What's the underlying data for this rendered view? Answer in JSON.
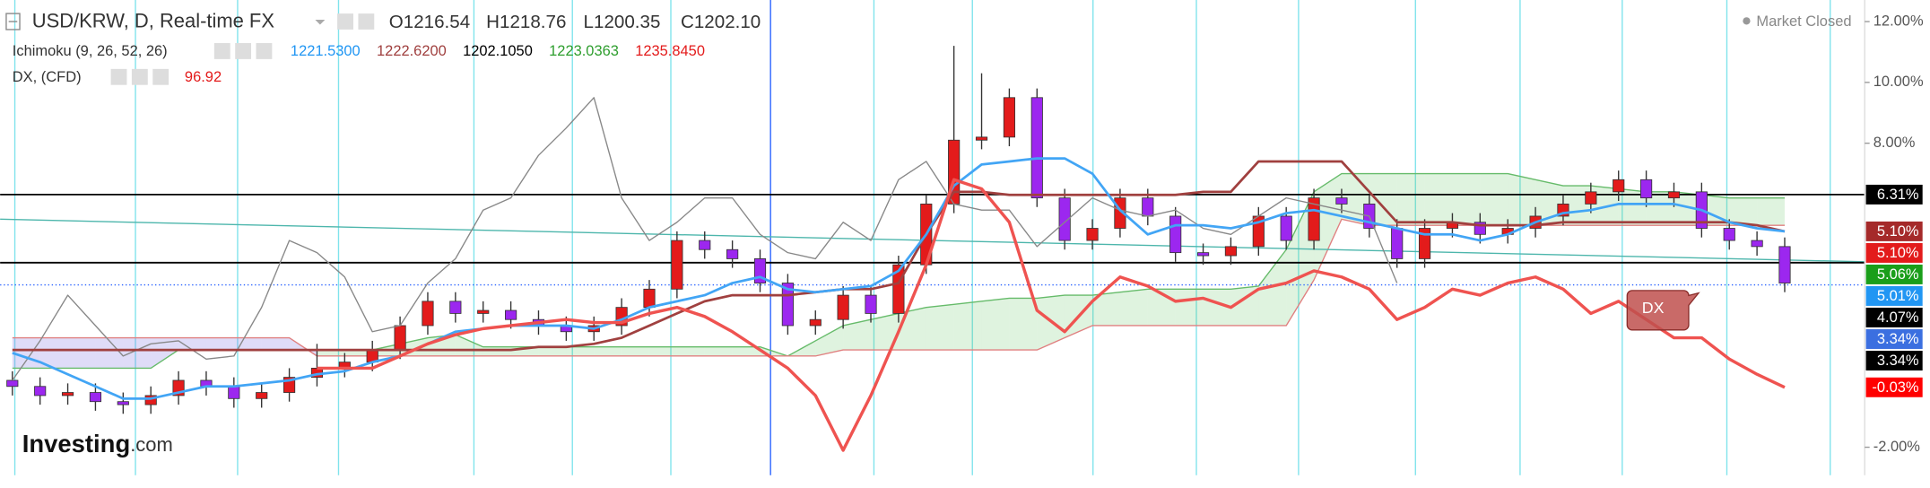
{
  "chart_data": {
    "type": "candlestick",
    "title": "USD/KRW, D, Real-time FX",
    "ohlc": [
      {
        "label": "O",
        "value": "1216.54"
      },
      {
        "label": "H",
        "value": "1218.76"
      },
      {
        "label": "L",
        "value": "1200.35"
      },
      {
        "label": "C",
        "value": "1202.10"
      }
    ],
    "indicators": [
      {
        "name": "Ichimoku (9, 26, 52, 26)",
        "readings": [
          {
            "text": "1221.5300",
            "color": "#2196f3"
          },
          {
            "text": "1222.6200",
            "color": "#a0403f"
          },
          {
            "text": "1202.1050",
            "color": "#000000"
          },
          {
            "text": "1223.0363",
            "color": "#2e9e2e"
          },
          {
            "text": "1235.8450",
            "color": "#e31b1b"
          }
        ]
      },
      {
        "name": "DX, (CFD)",
        "readings": [
          {
            "text": "96.92",
            "color": "#e31b1b"
          }
        ]
      }
    ],
    "status": "Market Closed",
    "brand": [
      "Investing",
      ".com"
    ],
    "annotation": "DX",
    "ylim": [
      -2.92,
      12.71
    ],
    "yticks": [
      {
        "value": 12,
        "label": "12.00%"
      },
      {
        "value": 10,
        "label": "10.00%"
      },
      {
        "value": 8,
        "label": "8.00%"
      },
      {
        "value": -2,
        "label": "-2.00%"
      }
    ],
    "candles": {
      "up_color": "#e31b1b",
      "down_color": "#9c27ef",
      "open": [
        0.2,
        0.0,
        -0.3,
        -0.2,
        -0.5,
        -0.6,
        -0.3,
        0.2,
        0.0,
        -0.4,
        -0.2,
        0.3,
        0.6,
        0.8,
        1.2,
        2.0,
        2.8,
        2.4,
        2.5,
        2.2,
        2.0,
        1.8,
        2.0,
        2.6,
        3.2,
        4.8,
        4.5,
        4.2,
        3.4,
        2.0,
        2.2,
        3.0,
        2.4,
        4.0,
        6.0,
        8.1,
        8.2,
        9.5,
        6.2,
        4.8,
        5.2,
        6.2,
        5.6,
        4.4,
        4.3,
        4.6,
        5.6,
        4.8,
        6.2,
        6.0,
        5.2,
        4.2,
        5.2,
        5.4,
        5.0,
        5.2,
        5.6,
        6.0,
        6.4,
        6.8,
        6.2,
        6.4,
        5.2,
        4.8,
        4.6
      ],
      "high": [
        0.5,
        0.3,
        0.1,
        0.1,
        -0.2,
        0.0,
        0.5,
        0.5,
        0.3,
        0.1,
        0.6,
        1.4,
        1.1,
        1.5,
        2.3,
        3.1,
        3.1,
        2.8,
        2.8,
        2.5,
        2.3,
        2.3,
        2.9,
        3.5,
        5.1,
        5.1,
        4.8,
        4.5,
        3.7,
        2.5,
        3.3,
        3.3,
        4.3,
        6.3,
        11.2,
        10.3,
        9.8,
        9.8,
        6.5,
        5.5,
        6.5,
        6.5,
        5.9,
        4.7,
        4.9,
        5.9,
        5.9,
        6.5,
        6.5,
        6.3,
        5.5,
        5.5,
        5.7,
        5.7,
        5.5,
        5.9,
        6.3,
        6.7,
        7.1,
        7.1,
        6.7,
        6.7,
        5.5,
        5.1,
        4.9
      ],
      "low": [
        -0.3,
        -0.6,
        -0.6,
        -0.8,
        -0.9,
        -0.9,
        -0.6,
        -0.3,
        -0.7,
        -0.7,
        -0.5,
        0.0,
        0.3,
        0.5,
        0.9,
        1.7,
        2.1,
        2.1,
        1.9,
        1.7,
        1.5,
        1.5,
        1.7,
        2.3,
        2.9,
        4.2,
        3.9,
        3.1,
        1.7,
        1.7,
        1.9,
        2.1,
        2.1,
        3.7,
        5.7,
        7.8,
        7.9,
        5.9,
        4.5,
        4.5,
        4.9,
        5.3,
        4.1,
        4.0,
        4.0,
        4.3,
        4.5,
        4.5,
        5.7,
        4.9,
        3.9,
        3.9,
        4.9,
        4.7,
        4.7,
        4.9,
        5.3,
        5.7,
        6.1,
        5.9,
        5.9,
        4.9,
        4.5,
        4.3,
        3.1
      ],
      "close": [
        0.0,
        -0.3,
        -0.2,
        -0.5,
        -0.6,
        -0.3,
        0.2,
        0.0,
        -0.4,
        -0.2,
        0.3,
        0.6,
        0.8,
        1.2,
        2.0,
        2.8,
        2.4,
        2.5,
        2.2,
        2.0,
        1.8,
        2.0,
        2.6,
        3.2,
        4.8,
        4.5,
        4.2,
        3.4,
        2.0,
        2.2,
        3.0,
        2.4,
        4.0,
        6.0,
        8.1,
        8.2,
        9.5,
        6.2,
        4.8,
        5.2,
        6.2,
        5.6,
        4.4,
        4.3,
        4.6,
        5.6,
        4.8,
        6.2,
        6.0,
        5.2,
        4.2,
        5.2,
        5.4,
        5.0,
        5.2,
        5.6,
        6.0,
        6.4,
        6.8,
        6.2,
        6.4,
        5.2,
        4.8,
        4.6,
        3.4
      ]
    },
    "cloud": {
      "up_color": "rgba(110,200,110,0.22)",
      "down_color": "rgba(140,130,230,0.28)",
      "span_a": {
        "color": "#66bb6a",
        "values": [
          0.6,
          0.6,
          0.6,
          0.6,
          0.6,
          0.6,
          1.2,
          1.2,
          1.2,
          1.2,
          1.2,
          1.2,
          1.2,
          1.2,
          1.4,
          1.6,
          1.7,
          1.3,
          1.3,
          1.3,
          1.3,
          1.3,
          1.3,
          1.3,
          1.3,
          1.3,
          1.3,
          1.3,
          1.0,
          1.5,
          2.0,
          2.2,
          2.4,
          2.6,
          2.7,
          2.8,
          2.9,
          2.9,
          3.0,
          3.0,
          3.1,
          3.2,
          3.2,
          3.2,
          3.2,
          3.3,
          4.5,
          6.4,
          7.0,
          7.0,
          7.0,
          7.0,
          7.0,
          7.0,
          7.0,
          6.8,
          6.6,
          6.6,
          6.5,
          6.4,
          6.4,
          6.3,
          6.2,
          6.2,
          6.2
        ]
      },
      "span_b": {
        "color": "#e08080",
        "values": [
          1.6,
          1.6,
          1.6,
          1.6,
          1.6,
          1.6,
          1.6,
          1.6,
          1.6,
          1.6,
          1.6,
          1.0,
          1.0,
          1.0,
          1.0,
          1.0,
          1.0,
          1.0,
          1.0,
          1.0,
          1.0,
          1.0,
          1.0,
          1.0,
          1.0,
          1.0,
          1.0,
          1.0,
          1.0,
          1.0,
          1.2,
          1.2,
          1.2,
          1.2,
          1.2,
          1.2,
          1.2,
          1.2,
          1.6,
          2.0,
          2.0,
          2.0,
          2.0,
          2.0,
          2.0,
          2.0,
          2.0,
          3.5,
          5.5,
          5.3,
          5.3,
          5.3,
          5.3,
          5.3,
          5.3,
          5.3,
          5.3,
          5.3,
          5.3,
          5.3,
          5.3,
          5.3,
          5.3,
          5.3,
          5.3
        ]
      }
    },
    "lines": [
      {
        "color": "#888888",
        "width": 1,
        "values": [
          0.2,
          1.5,
          3.0,
          2.0,
          1.0,
          1.4,
          1.5,
          0.9,
          1.0,
          2.6,
          4.8,
          4.4,
          3.6,
          1.8,
          2.0,
          3.4,
          4.2,
          5.8,
          6.2,
          7.6,
          8.5,
          9.5,
          6.2,
          4.8,
          5.4,
          6.2,
          6.2,
          5.0,
          4.4,
          4.2,
          5.4,
          4.8,
          6.8,
          7.4,
          6.0,
          5.8,
          5.8,
          4.6,
          5.4,
          6.2,
          5.8,
          5.6,
          5.8,
          5.2,
          5.0,
          5.6,
          6.2,
          6.0,
          5.8,
          5.6,
          3.4,
          null,
          null,
          null,
          null,
          null,
          null,
          null,
          null,
          null,
          null,
          null,
          null,
          null,
          null
        ]
      },
      {
        "color": "#a0403f",
        "width": 2,
        "values": [
          1.2,
          1.2,
          1.2,
          1.2,
          1.2,
          1.2,
          1.2,
          1.2,
          1.2,
          1.2,
          1.2,
          1.2,
          1.2,
          1.2,
          1.2,
          1.2,
          1.2,
          1.2,
          1.2,
          1.3,
          1.3,
          1.4,
          1.6,
          2.0,
          2.4,
          2.8,
          3.0,
          3.0,
          3.0,
          3.1,
          3.2,
          3.2,
          3.4,
          5.0,
          6.4,
          6.4,
          6.3,
          6.3,
          6.3,
          6.3,
          6.3,
          6.3,
          6.3,
          6.4,
          6.4,
          7.4,
          7.4,
          7.4,
          7.4,
          6.4,
          5.4,
          5.4,
          5.4,
          5.3,
          5.3,
          5.3,
          5.4,
          5.4,
          5.4,
          5.4,
          5.4,
          5.4,
          5.4,
          5.3,
          5.1
        ]
      },
      {
        "color": "#42a5f5",
        "width": 2,
        "values": [
          1.1,
          0.8,
          0.4,
          0.0,
          -0.4,
          -0.4,
          -0.2,
          0.0,
          0.0,
          0.1,
          0.2,
          0.4,
          0.5,
          0.8,
          1.0,
          1.4,
          1.8,
          1.9,
          2.0,
          2.0,
          2.0,
          1.9,
          2.2,
          2.6,
          2.8,
          3.0,
          3.4,
          3.6,
          3.2,
          3.1,
          3.2,
          3.3,
          3.8,
          5.0,
          6.6,
          7.3,
          7.4,
          7.5,
          7.5,
          7.0,
          5.8,
          5.0,
          5.3,
          5.3,
          5.2,
          5.4,
          5.7,
          5.8,
          5.6,
          5.4,
          5.2,
          5.0,
          5.0,
          4.8,
          5.0,
          5.4,
          5.7,
          5.8,
          6.0,
          6.0,
          6.0,
          5.8,
          5.4,
          5.2,
          5.1
        ]
      },
      {
        "color": "#ef5350",
        "width": 2.5,
        "values": [
          null,
          null,
          null,
          null,
          null,
          null,
          null,
          null,
          null,
          null,
          null,
          0.6,
          0.6,
          0.6,
          1.0,
          1.4,
          1.7,
          1.9,
          2.0,
          2.1,
          2.2,
          2.1,
          2.1,
          2.4,
          2.6,
          2.3,
          1.8,
          1.2,
          0.6,
          -0.3,
          -2.1,
          -0.3,
          1.8,
          4.0,
          6.8,
          6.5,
          5.4,
          2.5,
          1.8,
          2.8,
          3.6,
          3.3,
          2.8,
          2.9,
          2.6,
          3.2,
          3.4,
          3.8,
          3.6,
          3.2,
          2.2,
          2.6,
          3.2,
          3.0,
          3.4,
          3.6,
          3.2,
          2.4,
          2.8,
          2.2,
          1.6,
          1.6,
          0.9,
          0.4,
          -0.03
        ]
      }
    ],
    "hlines": {
      "color": "#000000",
      "values": [
        6.31,
        4.07
      ]
    },
    "trend_line": {
      "color": "#4db6ac",
      "values": [
        5.5,
        4.1
      ]
    },
    "last_price_line": {
      "color": "#2962ff",
      "value": 3.34
    },
    "price_labels": [
      {
        "value": 6.31,
        "label": "6.31%",
        "color": "#000000"
      },
      {
        "value": 5.1,
        "label": "5.10%",
        "color": "#a52a2a"
      },
      {
        "value": 5.1,
        "label": "5.10%",
        "color": "#e31b1b"
      },
      {
        "value": 5.06,
        "label": "5.06%",
        "color": "#1a9e1a"
      },
      {
        "value": 5.01,
        "label": "5.01%",
        "color": "#2196f3"
      },
      {
        "value": 4.07,
        "label": "4.07%",
        "color": "#000000"
      },
      {
        "value": 3.34,
        "label": "3.34%",
        "color": "#3b6fe0"
      },
      {
        "value": 3.34,
        "label": "3.34%",
        "color": "#000000"
      },
      {
        "value": -0.03,
        "label": "-0.03%",
        "color": "#ff0000"
      }
    ]
  }
}
